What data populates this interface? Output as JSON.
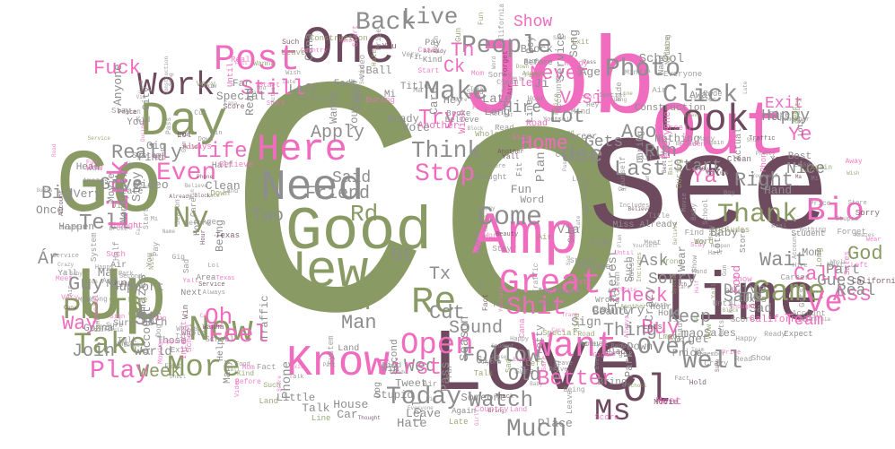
{
  "colors": {
    "olive": "#8a9a64",
    "pink": "#f06cbf",
    "plum": "#6e4a5e",
    "grey": "#8d8d8d"
  },
  "words": [
    {
      "text": "Co",
      "color": "olive",
      "icon": null
    },
    {
      "text": "See",
      "color": "plum"
    },
    {
      "text": "Job",
      "color": "pink"
    },
    {
      "text": "Love",
      "color": "plum"
    },
    {
      "text": "Go",
      "color": "olive"
    },
    {
      "text": "Up",
      "color": "olive"
    },
    {
      "text": "Out",
      "color": "pink"
    },
    {
      "text": "One",
      "color": "plum"
    },
    {
      "text": "Time",
      "color": "plum"
    },
    {
      "text": "Good",
      "color": "olive"
    },
    {
      "text": "Amp",
      "color": "pink"
    },
    {
      "text": "Day",
      "color": "olive"
    },
    {
      "text": "New",
      "color": "olive"
    },
    {
      "text": "Need",
      "color": "grey"
    },
    {
      "text": "Know",
      "color": "pink"
    },
    {
      "text": "Here",
      "color": "pink"
    },
    {
      "text": "Look",
      "color": "plum"
    },
    {
      "text": "Post",
      "color": "pink"
    },
    {
      "text": "Want",
      "color": "pink"
    },
    {
      "text": "Great",
      "color": "pink"
    },
    {
      "text": "Work",
      "color": "plum"
    },
    {
      "text": "Now",
      "color": "olive"
    },
    {
      "text": "Take",
      "color": "olive"
    },
    {
      "text": "More",
      "color": "olive"
    },
    {
      "text": "Pm",
      "color": "olive"
    },
    {
      "text": "Link",
      "color": "pink"
    },
    {
      "text": "Bio",
      "color": "pink"
    },
    {
      "text": "Game",
      "color": "olive"
    },
    {
      "text": "Ve",
      "color": "pink"
    },
    {
      "text": "Re",
      "color": "olive"
    },
    {
      "text": "Open",
      "color": "pink"
    },
    {
      "text": "Come",
      "color": "grey"
    },
    {
      "text": "Make",
      "color": "grey"
    },
    {
      "text": "People",
      "color": "grey"
    },
    {
      "text": "Back",
      "color": "grey"
    },
    {
      "text": "Photo",
      "color": "grey"
    },
    {
      "text": "Click",
      "color": "grey"
    },
    {
      "text": "Year",
      "color": "olive"
    },
    {
      "text": "Thank",
      "color": "olive"
    },
    {
      "text": "Even",
      "color": "pink"
    },
    {
      "text": "Think",
      "color": "grey"
    },
    {
      "text": "Play",
      "color": "pink"
    },
    {
      "text": "Today",
      "color": "grey"
    },
    {
      "text": "Much",
      "color": "grey"
    },
    {
      "text": "Watch",
      "color": "grey"
    },
    {
      "text": "Well",
      "color": "grey"
    },
    {
      "text": "Life",
      "color": "pink"
    },
    {
      "text": "Still",
      "color": "pink"
    },
    {
      "text": "Ol",
      "color": "plum"
    },
    {
      "text": "Tâ",
      "color": "olive"
    },
    {
      "text": "Ny",
      "color": "olive"
    },
    {
      "text": "Ms",
      "color": "plum"
    },
    {
      "text": "Oh",
      "color": "pink"
    },
    {
      "text": "Feel",
      "color": "pink"
    },
    {
      "text": "Over",
      "color": "grey"
    },
    {
      "text": "Follow",
      "color": "grey"
    },
    {
      "text": "Shit",
      "color": "pink"
    },
    {
      "text": "Use",
      "color": "grey"
    },
    {
      "text": "Rd",
      "color": "olive"
    },
    {
      "text": "Man",
      "color": "grey"
    },
    {
      "text": "Stop",
      "color": "pink"
    },
    {
      "text": "Last",
      "color": "grey"
    },
    {
      "text": "Wait",
      "color": "grey"
    },
    {
      "text": "Call",
      "color": "pink"
    },
    {
      "text": "Ass",
      "color": "pink"
    },
    {
      "text": "Buy",
      "color": "pink"
    },
    {
      "text": "Better",
      "color": "pink"
    },
    {
      "text": "Keep",
      "color": "grey"
    },
    {
      "text": "Guy",
      "color": "grey"
    },
    {
      "text": "Way",
      "color": "pink"
    },
    {
      "text": "Really",
      "color": "grey"
    },
    {
      "text": "Give",
      "color": "grey"
    },
    {
      "text": "Fuck",
      "color": "pink"
    },
    {
      "text": "Rn",
      "color": "plum"
    },
    {
      "text": "Right",
      "color": "grey"
    },
    {
      "text": "Ya",
      "color": "pink"
    },
    {
      "text": "Ye",
      "color": "pink"
    },
    {
      "text": "Tn",
      "color": "pink"
    },
    {
      "text": "Ck",
      "color": "pink"
    },
    {
      "text": "Never",
      "color": "pink"
    },
    {
      "text": "Try",
      "color": "pink"
    },
    {
      "text": "Lot",
      "color": "grey"
    },
    {
      "text": "Ago",
      "color": "grey"
    },
    {
      "text": "St",
      "color": "grey"
    },
    {
      "text": "Tx",
      "color": "grey"
    },
    {
      "text": "Cdt",
      "color": "grey"
    },
    {
      "text": "God",
      "color": "olive"
    },
    {
      "text": "Wed",
      "color": "grey"
    },
    {
      "text": "Join",
      "color": "grey"
    },
    {
      "text": "Week",
      "color": "olive"
    },
    {
      "text": "Sound",
      "color": "grey"
    },
    {
      "text": "Thing",
      "color": "grey"
    },
    {
      "text": "First",
      "color": "pink"
    },
    {
      "text": "Old",
      "color": "grey"
    },
    {
      "text": "Tell",
      "color": "grey"
    },
    {
      "text": "Friend",
      "color": "grey"
    },
    {
      "text": "Two",
      "color": "grey"
    },
    {
      "text": "Gt",
      "color": "grey"
    },
    {
      "text": "Ár",
      "color": "grey"
    },
    {
      "text": "Big",
      "color": "grey"
    },
    {
      "text": "Live",
      "color": "grey"
    },
    {
      "text": "Said",
      "color": "grey"
    },
    {
      "text": "Run",
      "color": "grey"
    },
    {
      "text": "Start",
      "color": "grey"
    },
    {
      "text": "Ask",
      "color": "grey"
    },
    {
      "text": "Sorry",
      "color": "grey"
    },
    {
      "text": "Check",
      "color": "pink"
    },
    {
      "text": "Home",
      "color": "pink"
    },
    {
      "text": "Gets",
      "color": "grey"
    },
    {
      "text": "Nice",
      "color": "grey"
    },
    {
      "text": "Happy",
      "color": "grey"
    },
    {
      "text": "Exit",
      "color": "pink"
    },
    {
      "text": "Team",
      "color": "pink"
    },
    {
      "text": "Real",
      "color": "grey"
    },
    {
      "text": "Guess",
      "color": "grey"
    },
    {
      "text": "Part",
      "color": "grey"
    },
    {
      "text": "Same",
      "color": "grey"
    },
    {
      "text": "Drive",
      "color": "grey"
    },
    {
      "text": "Visit",
      "color": "pink"
    },
    {
      "text": "Hire",
      "color": "grey"
    },
    {
      "text": "Apply",
      "color": "grey"
    },
    {
      "text": "Show",
      "color": "pink"
    },
    {
      "text": "Love2",
      "color": "pink"
    },
    {
      "text": "You",
      "color": "grey"
    },
    {
      "text": "Traffic",
      "color": "grey"
    },
    {
      "text": "Care",
      "color": "grey"
    },
    {
      "text": "Stay",
      "color": "grey"
    },
    {
      "text": "Career",
      "color": "grey"
    },
    {
      "text": "Ready",
      "color": "grey"
    },
    {
      "text": "Those",
      "color": "grey"
    },
    {
      "text": "Many",
      "color": "grey"
    },
    {
      "text": "Fun",
      "color": "grey"
    },
    {
      "text": "City",
      "color": "grey"
    },
    {
      "text": "Very",
      "color": "grey"
    },
    {
      "text": "Best",
      "color": "grey"
    },
    {
      "text": "Win",
      "color": "grey"
    },
    {
      "text": "Read",
      "color": "grey"
    },
    {
      "text": "Such",
      "color": "grey"
    },
    {
      "text": "Clean",
      "color": "grey"
    },
    {
      "text": "Tweet",
      "color": "grey"
    },
    {
      "text": "World",
      "color": "grey"
    },
    {
      "text": "Beauty",
      "color": "grey"
    },
    {
      "text": "Help",
      "color": "grey"
    },
    {
      "text": "Season",
      "color": "grey"
    },
    {
      "text": "Pay",
      "color": "grey"
    },
    {
      "text": "Wow",
      "color": "pink"
    },
    {
      "text": "Name",
      "color": "grey"
    },
    {
      "text": "Boy",
      "color": "grey"
    },
    {
      "text": "Talk",
      "color": "grey"
    },
    {
      "text": "Always",
      "color": "pink"
    },
    {
      "text": "Someone",
      "color": "grey"
    },
    {
      "text": "Via",
      "color": "grey"
    },
    {
      "text": "Hate",
      "color": "grey"
    },
    {
      "text": "Meet",
      "color": "pink"
    },
    {
      "text": "Pretty",
      "color": "grey"
    },
    {
      "text": "Mom",
      "color": "grey"
    },
    {
      "text": "Down",
      "color": "grey"
    },
    {
      "text": "Score",
      "color": "grey"
    },
    {
      "text": "Service",
      "color": "grey"
    },
    {
      "text": "Hot",
      "color": "grey"
    },
    {
      "text": "Student",
      "color": "grey"
    },
    {
      "text": "Next",
      "color": "grey"
    },
    {
      "text": "Little",
      "color": "grey"
    },
    {
      "text": "Away",
      "color": "grey"
    },
    {
      "text": "Store",
      "color": "grey"
    },
    {
      "text": "Another",
      "color": "pink"
    },
    {
      "text": "Gonna",
      "color": "grey"
    },
    {
      "text": "Damn",
      "color": "grey"
    },
    {
      "text": "Amazes",
      "color": "grey"
    },
    {
      "text": "Wish",
      "color": "pink"
    },
    {
      "text": "Miss",
      "color": "grey"
    },
    {
      "text": "Car",
      "color": "grey"
    },
    {
      "text": "Both",
      "color": "grey"
    },
    {
      "text": "Left",
      "color": "grey"
    },
    {
      "text": "Hold",
      "color": "grey"
    },
    {
      "text": "Cut",
      "color": "grey"
    },
    {
      "text": "Video",
      "color": "grey"
    },
    {
      "text": "Fit",
      "color": "grey"
    },
    {
      "text": "House",
      "color": "grey"
    },
    {
      "text": "Second",
      "color": "grey"
    },
    {
      "text": "Actual",
      "color": "grey"
    },
    {
      "text": "Head",
      "color": "grey"
    },
    {
      "text": "Wear",
      "color": "grey"
    },
    {
      "text": "Title",
      "color": "grey"
    },
    {
      "text": "Long",
      "color": "grey"
    },
    {
      "text": "Kind",
      "color": "grey"
    },
    {
      "text": "Before",
      "color": "grey"
    },
    {
      "text": "Sales",
      "color": "grey"
    },
    {
      "text": "Block",
      "color": "grey"
    },
    {
      "text": "Mile",
      "color": "pink"
    },
    {
      "text": "System",
      "color": "grey"
    },
    {
      "text": "Again",
      "color": "grey"
    },
    {
      "text": "Kid",
      "color": "pink"
    },
    {
      "text": "State",
      "color": "grey"
    },
    {
      "text": "Texas",
      "color": "grey"
    },
    {
      "text": "Vote",
      "color": "grey"
    },
    {
      "text": "Word",
      "color": "grey"
    },
    {
      "text": "Money",
      "color": "grey"
    },
    {
      "text": "Hour",
      "color": "grey"
    },
    {
      "text": "Track",
      "color": "grey"
    },
    {
      "text": "Once",
      "color": "grey"
    },
    {
      "text": "Happen",
      "color": "grey"
    },
    {
      "text": "School",
      "color": "grey"
    },
    {
      "text": "Fire",
      "color": "grey"
    },
    {
      "text": "Sad",
      "color": "grey"
    },
    {
      "text": "Land",
      "color": "grey"
    },
    {
      "text": "Movie",
      "color": "grey"
    },
    {
      "text": "Believe",
      "color": "grey"
    },
    {
      "text": "Road",
      "color": "pink"
    },
    {
      "text": "Plan",
      "color": "grey"
    },
    {
      "text": "Park",
      "color": "grey"
    },
    {
      "text": "Being",
      "color": "grey"
    },
    {
      "text": "Thought",
      "color": "pink"
    },
    {
      "text": "Country",
      "color": "grey"
    },
    {
      "text": "Food",
      "color": "pink"
    },
    {
      "text": "Find",
      "color": "grey"
    },
    {
      "text": "Special",
      "color": "grey"
    },
    {
      "text": "Everyone",
      "color": "pink"
    },
    {
      "text": "Phone",
      "color": "grey"
    },
    {
      "text": "Construction",
      "color": "grey"
    },
    {
      "text": "Girl",
      "color": "grey"
    },
    {
      "text": "Lmao",
      "color": "grey"
    },
    {
      "text": "Remember",
      "color": "grey"
    },
    {
      "text": "Fact",
      "color": "grey"
    },
    {
      "text": "Until",
      "color": "pink"
    },
    {
      "text": "Cana",
      "color": "grey"
    },
    {
      "text": "Air",
      "color": "grey"
    },
    {
      "text": "Ma",
      "color": "grey"
    },
    {
      "text": "Ji",
      "color": "grey"
    },
    {
      "text": "Includes",
      "color": "grey"
    },
    {
      "text": "Bring",
      "color": "grey"
    },
    {
      "text": "California",
      "color": "pink"
    },
    {
      "text": "Interest",
      "color": "grey"
    },
    {
      "text": "Support",
      "color": "grey"
    },
    {
      "text": "Nothing",
      "color": "grey"
    },
    {
      "text": "Anyone",
      "color": "grey"
    },
    {
      "text": "Price",
      "color": "grey"
    },
    {
      "text": "Song",
      "color": "grey"
    },
    {
      "text": "Account",
      "color": "grey"
    },
    {
      "text": "Area",
      "color": "grey"
    },
    {
      "text": "Stupid",
      "color": "grey"
    },
    {
      "text": "During",
      "color": "grey"
    },
    {
      "text": "Yourself",
      "color": "grey"
    },
    {
      "text": "Ever",
      "color": "grey"
    },
    {
      "text": "Ball",
      "color": "grey"
    },
    {
      "text": "Dog",
      "color": "grey"
    },
    {
      "text": "Forget",
      "color": "grey"
    },
    {
      "text": "Sure",
      "color": "grey"
    },
    {
      "text": "Place",
      "color": "grey"
    },
    {
      "text": "Whole",
      "color": "grey"
    },
    {
      "text": "Lots",
      "color": "grey"
    },
    {
      "text": "Gig",
      "color": "grey"
    },
    {
      "text": "Crazy",
      "color": "grey"
    },
    {
      "text": "Baby",
      "color": "grey"
    },
    {
      "text": "Late",
      "color": "grey"
    },
    {
      "text": "Ride",
      "color": "grey"
    },
    {
      "text": "Hand",
      "color": "grey"
    },
    {
      "text": "Line",
      "color": "grey"
    },
    {
      "text": "Leave",
      "color": "grey"
    },
    {
      "text": "Expect",
      "color": "grey"
    },
    {
      "text": "Already",
      "color": "grey"
    },
    {
      "text": "Gun",
      "color": "grey"
    },
    {
      "text": "Wanna",
      "color": "grey"
    },
    {
      "text": "Mi",
      "color": "grey"
    },
    {
      "text": "Lol",
      "color": "grey"
    },
    {
      "text": "Wrong",
      "color": "grey"
    },
    {
      "text": "Sign",
      "color": "grey"
    },
    {
      "text": "Broke",
      "color": "grey"
    },
    {
      "text": "Half",
      "color": "grey"
    },
    {
      "text": "Pass",
      "color": "grey"
    },
    {
      "text": "Far",
      "color": "grey"
    },
    {
      "text": "Hey",
      "color": "grey"
    },
    {
      "text": "Mind",
      "color": "grey"
    },
    {
      "text": "Yall",
      "color": "grey"
    },
    {
      "text": "Age",
      "color": "grey"
    }
  ]
}
